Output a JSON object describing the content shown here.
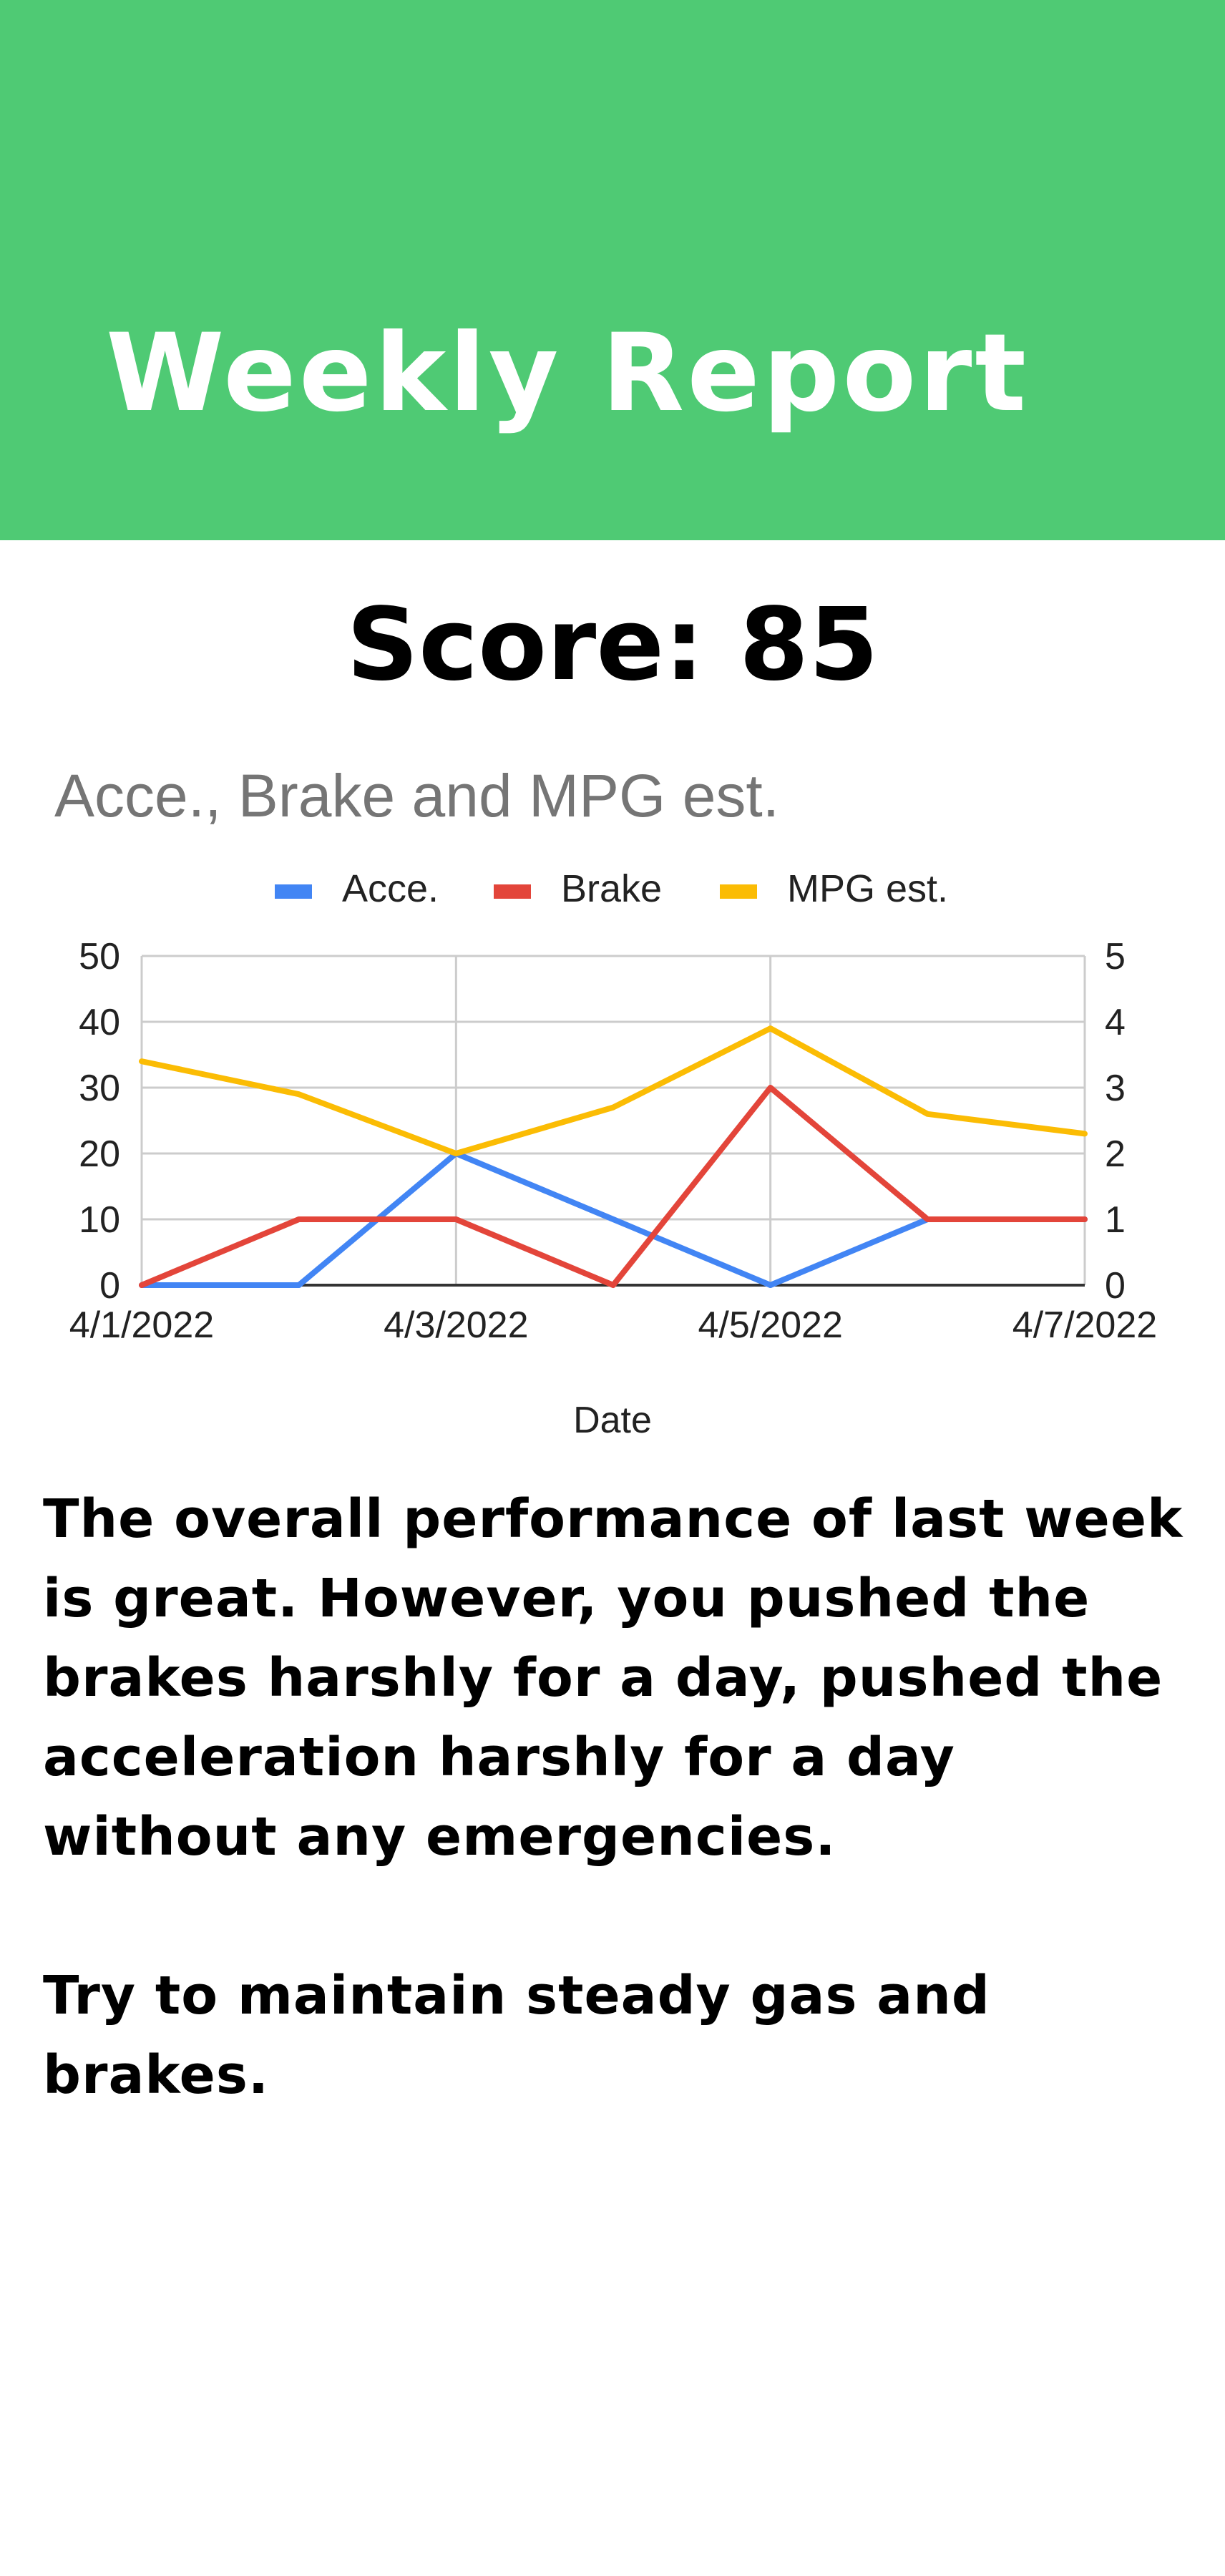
{
  "header": {
    "title": "Weekly Report",
    "background_color": "#4fca74"
  },
  "score": {
    "text": "Score: 85"
  },
  "chart_data": {
    "type": "line",
    "title": "Acce., Brake and MPG est.",
    "xlabel": "Date",
    "ylabel": "",
    "legend_position": "top",
    "grid": true,
    "x": [
      "4/1/2022",
      "4/2/2022",
      "4/3/2022",
      "4/4/2022",
      "4/5/2022",
      "4/6/2022",
      "4/7/2022"
    ],
    "x_tick_labels": [
      "4/1/2022",
      "4/3/2022",
      "4/5/2022",
      "4/7/2022"
    ],
    "y_left_ticks": [
      "0",
      "10",
      "20",
      "30",
      "40",
      "50"
    ],
    "y_right_ticks": [
      "0",
      "1",
      "2",
      "3",
      "4",
      "5"
    ],
    "ylim_left": [
      0,
      50
    ],
    "ylim_right": [
      0,
      5
    ],
    "series": [
      {
        "name": "Acce.",
        "axis": "left",
        "color": "#4285f4",
        "values": [
          0,
          0,
          20,
          10,
          0,
          10,
          10
        ]
      },
      {
        "name": "Brake",
        "axis": "left",
        "color": "#e3453a",
        "values": [
          0,
          10,
          10,
          0,
          30,
          10,
          10
        ]
      },
      {
        "name": "MPG est.",
        "axis": "right",
        "color": "#fbbc04",
        "values": [
          3.4,
          2.9,
          2.0,
          2.7,
          3.9,
          2.6,
          2.3
        ]
      }
    ]
  },
  "message": {
    "paragraph1": "The overall performance of last week is great. However, you pushed the brakes harshly for a day, pushed the acceleration harshly for a day without any emergencies.",
    "paragraph2": "Try to maintain steady gas and brakes."
  }
}
